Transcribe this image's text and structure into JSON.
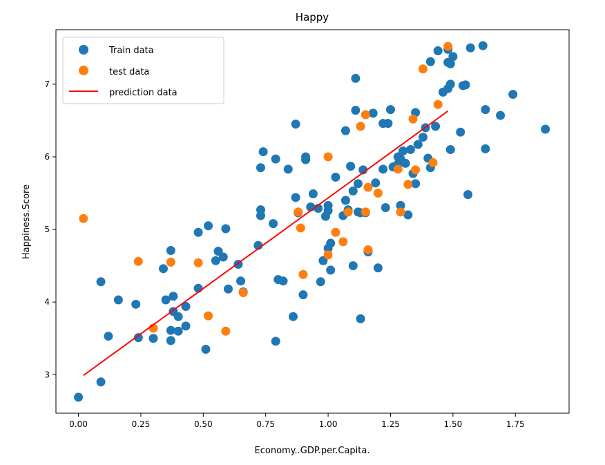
{
  "chart_data": {
    "type": "scatter",
    "title": "Happy",
    "xlabel": "Economy..GDP.per.Capita.",
    "ylabel": "Happiness.Score",
    "xlim": [
      -0.09,
      1.965
    ],
    "ylim": [
      2.47,
      7.75
    ],
    "x_ticks": [
      0.0,
      0.25,
      0.5,
      0.75,
      1.0,
      1.25,
      1.5,
      1.75
    ],
    "x_tick_labels": [
      "0.00",
      "0.25",
      "0.50",
      "0.75",
      "1.00",
      "1.25",
      "1.50",
      "1.75"
    ],
    "y_ticks": [
      3,
      4,
      5,
      6,
      7
    ],
    "y_tick_labels": [
      "3",
      "4",
      "5",
      "6",
      "7"
    ],
    "grid": false,
    "legend_position": "top-left",
    "series": [
      {
        "name": "Train data",
        "kind": "scatter",
        "color": "#1f77b4",
        "points": [
          [
            0.0,
            2.69
          ],
          [
            0.09,
            2.9
          ],
          [
            0.09,
            4.28
          ],
          [
            0.12,
            3.53
          ],
          [
            0.16,
            4.03
          ],
          [
            0.23,
            3.97
          ],
          [
            0.24,
            3.51
          ],
          [
            0.3,
            3.5
          ],
          [
            0.34,
            4.46
          ],
          [
            0.35,
            4.03
          ],
          [
            0.37,
            4.71
          ],
          [
            0.37,
            3.61
          ],
          [
            0.37,
            3.47
          ],
          [
            0.38,
            3.87
          ],
          [
            0.38,
            4.08
          ],
          [
            0.4,
            3.8
          ],
          [
            0.4,
            3.6
          ],
          [
            0.43,
            3.94
          ],
          [
            0.43,
            3.67
          ],
          [
            0.48,
            4.96
          ],
          [
            0.48,
            4.19
          ],
          [
            0.51,
            3.35
          ],
          [
            0.52,
            5.05
          ],
          [
            0.55,
            4.57
          ],
          [
            0.56,
            4.7
          ],
          [
            0.58,
            4.62
          ],
          [
            0.59,
            5.01
          ],
          [
            0.6,
            4.18
          ],
          [
            0.64,
            4.52
          ],
          [
            0.65,
            4.29
          ],
          [
            0.66,
            4.14
          ],
          [
            0.72,
            4.78
          ],
          [
            0.73,
            5.27
          ],
          [
            0.73,
            5.19
          ],
          [
            0.73,
            5.85
          ],
          [
            0.74,
            6.07
          ],
          [
            0.78,
            5.08
          ],
          [
            0.79,
            5.97
          ],
          [
            0.79,
            3.46
          ],
          [
            0.8,
            4.31
          ],
          [
            0.82,
            4.29
          ],
          [
            0.84,
            5.83
          ],
          [
            0.86,
            3.8
          ],
          [
            0.87,
            5.44
          ],
          [
            0.87,
            6.45
          ],
          [
            0.88,
            5.23
          ],
          [
            0.9,
            4.1
          ],
          [
            0.91,
            6.0
          ],
          [
            0.91,
            5.96
          ],
          [
            0.93,
            5.31
          ],
          [
            0.94,
            5.49
          ],
          [
            0.96,
            5.29
          ],
          [
            0.97,
            4.28
          ],
          [
            0.98,
            4.57
          ],
          [
            0.99,
            5.18
          ],
          [
            1.0,
            5.33
          ],
          [
            1.0,
            5.26
          ],
          [
            1.0,
            4.74
          ],
          [
            1.01,
            4.81
          ],
          [
            1.01,
            4.44
          ],
          [
            1.03,
            5.72
          ],
          [
            1.06,
            5.19
          ],
          [
            1.07,
            5.4
          ],
          [
            1.07,
            6.36
          ],
          [
            1.08,
            5.27
          ],
          [
            1.09,
            5.87
          ],
          [
            1.1,
            4.5
          ],
          [
            1.1,
            5.53
          ],
          [
            1.11,
            6.64
          ],
          [
            1.11,
            7.08
          ],
          [
            1.12,
            5.63
          ],
          [
            1.12,
            5.24
          ],
          [
            1.13,
            3.77
          ],
          [
            1.13,
            5.23
          ],
          [
            1.14,
            5.82
          ],
          [
            1.15,
            5.23
          ],
          [
            1.16,
            4.69
          ],
          [
            1.18,
            6.6
          ],
          [
            1.19,
            5.64
          ],
          [
            1.2,
            4.47
          ],
          [
            1.22,
            5.83
          ],
          [
            1.22,
            6.46
          ],
          [
            1.23,
            5.3
          ],
          [
            1.24,
            6.46
          ],
          [
            1.25,
            6.65
          ],
          [
            1.26,
            5.86
          ],
          [
            1.28,
            5.9
          ],
          [
            1.28,
            6.0
          ],
          [
            1.29,
            5.33
          ],
          [
            1.29,
            5.97
          ],
          [
            1.3,
            6.08
          ],
          [
            1.31,
            5.91
          ],
          [
            1.32,
            5.2
          ],
          [
            1.33,
            6.1
          ],
          [
            1.34,
            5.77
          ],
          [
            1.35,
            6.61
          ],
          [
            1.35,
            5.63
          ],
          [
            1.36,
            6.17
          ],
          [
            1.38,
            6.27
          ],
          [
            1.39,
            6.4
          ],
          [
            1.4,
            5.98
          ],
          [
            1.41,
            5.85
          ],
          [
            1.41,
            7.31
          ],
          [
            1.43,
            6.42
          ],
          [
            1.44,
            7.46
          ],
          [
            1.46,
            6.89
          ],
          [
            1.48,
            7.3
          ],
          [
            1.48,
            7.48
          ],
          [
            1.48,
            6.94
          ],
          [
            1.49,
            7.0
          ],
          [
            1.49,
            7.28
          ],
          [
            1.49,
            6.1
          ],
          [
            1.5,
            7.38
          ],
          [
            1.53,
            6.34
          ],
          [
            1.54,
            6.98
          ],
          [
            1.55,
            6.99
          ],
          [
            1.56,
            5.48
          ],
          [
            1.57,
            7.5
          ],
          [
            1.62,
            7.53
          ],
          [
            1.63,
            6.65
          ],
          [
            1.63,
            6.11
          ],
          [
            1.69,
            6.57
          ],
          [
            1.74,
            6.86
          ],
          [
            1.87,
            6.38
          ]
        ]
      },
      {
        "name": "test data",
        "kind": "scatter",
        "color": "#ff7f0e",
        "points": [
          [
            0.02,
            5.15
          ],
          [
            0.24,
            4.56
          ],
          [
            0.3,
            3.64
          ],
          [
            0.37,
            4.55
          ],
          [
            0.48,
            4.54
          ],
          [
            0.52,
            3.81
          ],
          [
            0.59,
            3.6
          ],
          [
            0.66,
            4.13
          ],
          [
            0.88,
            5.24
          ],
          [
            0.89,
            5.02
          ],
          [
            0.9,
            4.38
          ],
          [
            1.0,
            4.65
          ],
          [
            1.0,
            6.0
          ],
          [
            1.03,
            4.96
          ],
          [
            1.06,
            4.83
          ],
          [
            1.08,
            5.24
          ],
          [
            1.13,
            6.42
          ],
          [
            1.15,
            6.58
          ],
          [
            1.15,
            5.24
          ],
          [
            1.16,
            5.58
          ],
          [
            1.16,
            4.72
          ],
          [
            1.2,
            5.5
          ],
          [
            1.28,
            5.83
          ],
          [
            1.29,
            5.24
          ],
          [
            1.32,
            5.62
          ],
          [
            1.34,
            6.52
          ],
          [
            1.35,
            5.82
          ],
          [
            1.38,
            7.21
          ],
          [
            1.42,
            5.92
          ],
          [
            1.44,
            6.72
          ],
          [
            1.48,
            7.52
          ]
        ]
      },
      {
        "name": "prediction data",
        "kind": "line",
        "color": "#ff0000",
        "points": [
          [
            0.02,
            2.99
          ],
          [
            1.48,
            6.63
          ]
        ]
      }
    ]
  }
}
